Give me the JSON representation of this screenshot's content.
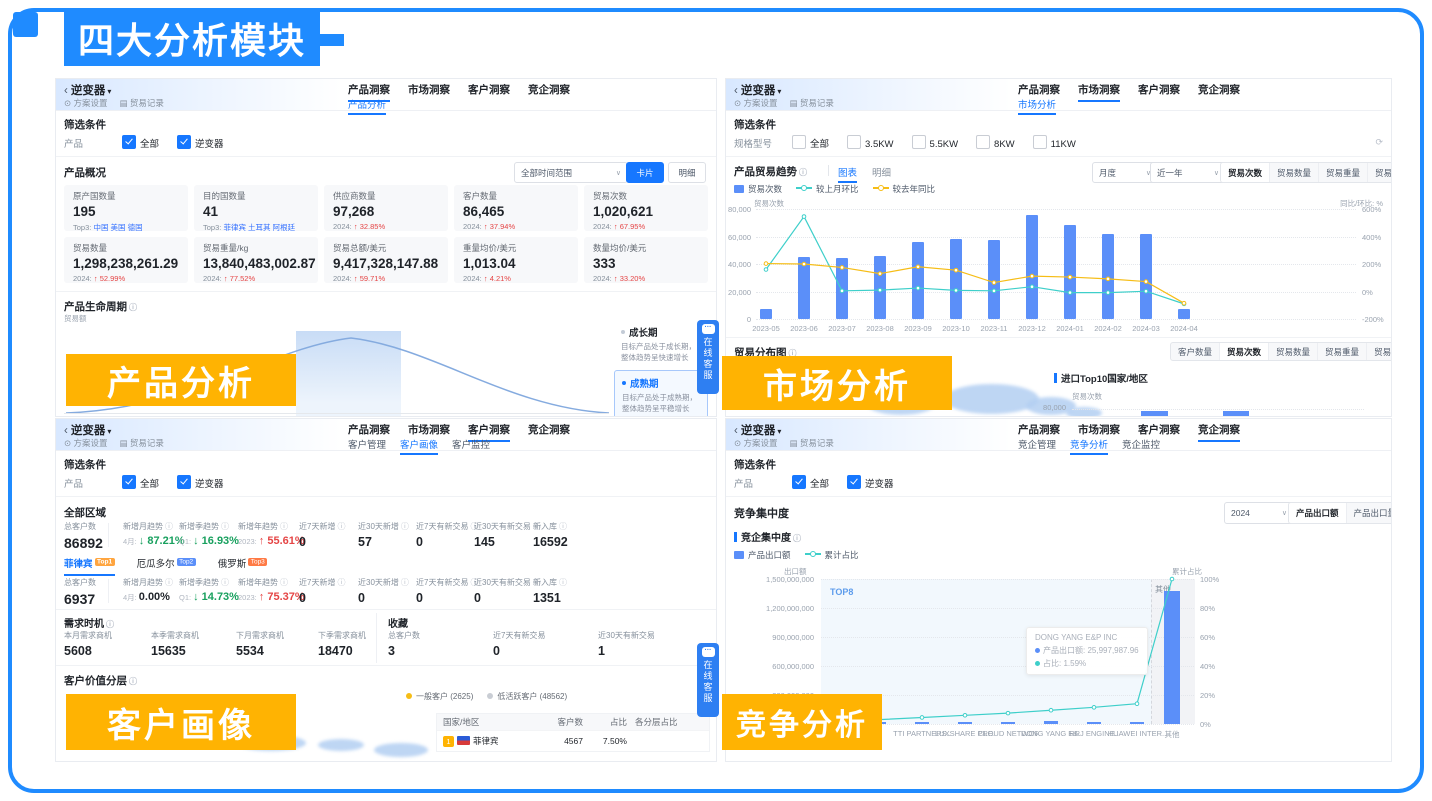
{
  "frame": {
    "badge": "四大分析模块",
    "accent": "#1f8bff"
  },
  "icons": {
    "back": "‹",
    "caret": "▾",
    "dd": "∨",
    "info": "ⓘ",
    "gear": "⊙",
    "doc": "▤",
    "refresh": "⟳",
    "dots": "···"
  },
  "colors": {
    "accent": "#1677ff",
    "bar_blue": "#5b8ff9",
    "line_cyan": "#3ecfca",
    "line_orange": "#f6bd16",
    "up_red": "#e54545",
    "down_green": "#18a05e",
    "label_orange": "#ffb302",
    "badge_blue": "#1f8bff"
  },
  "common": {
    "back": "逆变器",
    "plan": "方案设置",
    "records": "贸易记录",
    "service": "在线客服",
    "tabs": [
      "产品洞察",
      "市场洞察",
      "客户洞察",
      "竞企洞察"
    ]
  },
  "product": {
    "label": "产品分析",
    "subtabs": [
      "产品分析"
    ],
    "filter": {
      "title": "筛选条件",
      "row_label": "产品",
      "options": [
        "全部",
        "逆变器"
      ]
    },
    "overview": {
      "title": "产品概况",
      "range_dd": "全部时间范围",
      "view_card": "卡片",
      "view_detail": "明细",
      "cards1": [
        {
          "label": "原产国数量",
          "value": "195",
          "sub_prefix": "Top3:",
          "sub": "中国 美国 德国"
        },
        {
          "label": "目的国数量",
          "value": "41",
          "sub_prefix": "Top3:",
          "sub": "菲律宾 土耳其 阿根廷"
        },
        {
          "label": "供应商数量",
          "value": "97,268",
          "sub_prefix": "2024:",
          "sub": "↑ 32.85%"
        },
        {
          "label": "客户数量",
          "value": "86,465",
          "sub_prefix": "2024:",
          "sub": "↑ 37.94%"
        },
        {
          "label": "贸易次数",
          "value": "1,020,621",
          "sub_prefix": "2024:",
          "sub": "↑ 67.95%"
        }
      ],
      "cards2": [
        {
          "label": "贸易数量",
          "value": "1,298,238,261.29",
          "sub_prefix": "2024:",
          "sub": "↑ 52.99%"
        },
        {
          "label": "贸易重量/kg",
          "value": "13,840,483,002.87",
          "sub_prefix": "2024:",
          "sub": "↑ 77.52%"
        },
        {
          "label": "贸易总额/美元",
          "value": "9,417,328,147.88",
          "sub_prefix": "2024:",
          "sub": "↑ 59.71%"
        },
        {
          "label": "重量均价/美元",
          "value": "1,013.04",
          "sub_prefix": "2024:",
          "sub": "↑ 4.21%"
        },
        {
          "label": "数量均价/美元",
          "value": "333",
          "sub_prefix": "2024:",
          "sub": "↑ 33.20%"
        }
      ]
    },
    "lifecycle": {
      "title": "产品生命周期",
      "ylabel": "贸易额",
      "stages": [
        {
          "name": "成长期",
          "desc": "目标产品处于成长期，整体趋势呈快速增长"
        },
        {
          "name": "成熟期",
          "desc": "目标产品处于成熟期，整体趋势呈平稳增长"
        }
      ]
    }
  },
  "market": {
    "label": "市场分析",
    "subtabs": [
      "市场分析"
    ],
    "filter": {
      "title": "筛选条件",
      "row_label": "规格型号",
      "options": [
        "全部",
        "3.5KW",
        "5.5KW",
        "8KW",
        "11KW"
      ]
    },
    "trend": {
      "title": "产品贸易趋势",
      "views": [
        "图表",
        "明细"
      ],
      "period_dd": "月度",
      "range_dd": "近一年",
      "metrics": [
        "贸易次数",
        "贸易数量",
        "贸易重量",
        "贸易金额"
      ],
      "legend": [
        "贸易次数",
        "较上月环比",
        "较去年同比"
      ],
      "chart": {
        "type": "bar+line",
        "ylabel_left": "贸易次数",
        "ylabel_right": "同比/环比: %",
        "left_ticks": [
          "80,000",
          "60,000",
          "40,000",
          "20,000",
          "0"
        ],
        "right_ticks": [
          "600%",
          "400%",
          "200%",
          "0%",
          "-200%"
        ],
        "left_max": 80000,
        "categories": [
          "2023-05",
          "2023-06",
          "2023-07",
          "2023-08",
          "2023-09",
          "2023-10",
          "2023-11",
          "2023-12",
          "2024-01",
          "2024-02",
          "2024-03",
          "2024-04"
        ],
        "bars": [
          7000,
          45000,
          44000,
          46000,
          56000,
          58000,
          57500,
          75500,
          68500,
          62000,
          61500,
          7000
        ],
        "mom_pct": [
          160,
          545,
          5,
          10,
          25,
          8,
          5,
          35,
          -8,
          -8,
          2,
          -90
        ],
        "yoy_pct": [
          203,
          200,
          175,
          130,
          180,
          155,
          65,
          112,
          105,
          92,
          72,
          -85
        ]
      }
    },
    "distribution": {
      "title": "贸易分布图",
      "metrics": [
        "客户数量",
        "贸易次数",
        "贸易数量",
        "贸易重量",
        "贸易金额"
      ],
      "top10": {
        "title": "进口Top10国家/地区",
        "ylabel": "贸易次数",
        "tick": "80,000"
      }
    }
  },
  "customer": {
    "label": "客户画像",
    "subtabs": [
      "客户管理",
      "客户画像",
      "客户监控"
    ],
    "filter": {
      "title": "筛选条件",
      "row_label": "产品",
      "options": [
        "全部",
        "逆变器"
      ]
    },
    "region_title": "全部区域",
    "stat_labels": [
      "总客户数",
      "新增月趋势",
      "新增季趋势",
      "新增年趋势",
      "近7天新增",
      "近30天新增",
      "近7天有新交易",
      "近30天有新交易",
      "新入库"
    ],
    "rows": [
      {
        "total": "86892",
        "cols": [
          {
            "prefix": "4月:",
            "value": "↓ 87.21%",
            "cls": "sv green"
          },
          {
            "prefix": "Q1:",
            "value": "↓ 16.93%",
            "cls": "sv green"
          },
          {
            "prefix": "2023:",
            "value": "↑ 55.61%",
            "cls": "sv red"
          },
          {
            "value": "0",
            "cls": "sv"
          },
          {
            "value": "57",
            "cls": "sv"
          },
          {
            "value": "0",
            "cls": "sv"
          },
          {
            "value": "145",
            "cls": "sv"
          },
          {
            "value": "16592",
            "cls": "sv"
          }
        ]
      },
      {
        "total": "6937",
        "cols": [
          {
            "prefix": "4月:",
            "value": "0.00%",
            "cls": "sv flat"
          },
          {
            "prefix": "Q1:",
            "value": "↓ 14.73%",
            "cls": "sv green"
          },
          {
            "prefix": "2023:",
            "value": "↑ 75.37%",
            "cls": "sv red"
          },
          {
            "value": "0",
            "cls": "sv"
          },
          {
            "value": "0",
            "cls": "sv"
          },
          {
            "value": "0",
            "cls": "sv"
          },
          {
            "value": "0",
            "cls": "sv"
          },
          {
            "value": "1351",
            "cls": "sv"
          }
        ]
      }
    ],
    "country_tabs": [
      {
        "name": "菲律宾",
        "badge": "Top1"
      },
      {
        "name": "厄瓜多尔",
        "badge": "Top2"
      },
      {
        "name": "俄罗斯",
        "badge": "Top3"
      }
    ],
    "demand": {
      "title": "需求时机",
      "cols": [
        {
          "label": "本月需求商机",
          "value": "5608"
        },
        {
          "label": "本季需求商机",
          "value": "15635"
        },
        {
          "label": "下月需求商机",
          "value": "5534"
        },
        {
          "label": "下季需求商机",
          "value": "18470"
        }
      ]
    },
    "favorites": {
      "title": "收藏",
      "cols": [
        {
          "label": "总客户数",
          "value": "3"
        },
        {
          "label": "近7天有新交易",
          "value": "0"
        },
        {
          "label": "近30天有新交易",
          "value": "1"
        }
      ]
    },
    "value_layers": {
      "title": "客户价值分层",
      "legend": [
        {
          "name": "一般客户",
          "count": "(2625)"
        },
        {
          "name": "低活跃客户",
          "count": "(48562)"
        }
      ],
      "table": {
        "headers": [
          "国家/地区",
          "客户数",
          "占比",
          "各分层占比"
        ],
        "rows": [
          {
            "rank": "1",
            "country": "菲律宾",
            "count": "4567",
            "pct": "7.50%"
          }
        ]
      }
    }
  },
  "competition": {
    "label": "竞争分析",
    "subtabs": [
      "竞企管理",
      "竞争分析",
      "竞企监控"
    ],
    "filter": {
      "title": "筛选条件",
      "row_label": "产品",
      "options": [
        "全部",
        "逆变器"
      ]
    },
    "section_title": "竞争集中度",
    "year_dd": "2024",
    "metrics": [
      "产品出口额",
      "产品出口量"
    ],
    "block": {
      "title": "竞企集中度",
      "legend": [
        "产品出口额",
        "累计占比"
      ],
      "chart": {
        "type": "pareto",
        "ylabel_left": "出口额",
        "ylabel_right": "累计占比",
        "region_label": "TOP8",
        "other_label": "其他",
        "left_ticks": [
          "1,500,000,000",
          "1,200,000,000",
          "900,000,000",
          "600,000,000",
          "300,000,000",
          "0"
        ],
        "right_ticks": [
          "100%",
          "80%",
          "60%",
          "40%",
          "20%",
          "0%"
        ],
        "left_max": 1500000000,
        "categories": [
          "",
          "",
          "TTI PARTNERS..",
          "LUXSHARE PRE..",
          "CLOUD NETWOR..",
          "DONG YANG E&..",
          "RRJ ENGINE..",
          "HUAWEI INTER..",
          "其他"
        ],
        "bars": [
          20000000,
          20000000,
          22000000,
          21000000,
          20000000,
          26000000,
          22000000,
          24000000,
          1380000000
        ],
        "cumulative_pct": [
          1.5,
          3,
          4.5,
          6,
          7.5,
          9.5,
          11.5,
          14,
          100
        ]
      },
      "tooltip": {
        "title": "DONG YANG E&P INC",
        "row1_label": "产品出口额:",
        "row1_value": "25,997,987.96",
        "row2_label": "占比:",
        "row2_value": "1.59%"
      }
    }
  }
}
